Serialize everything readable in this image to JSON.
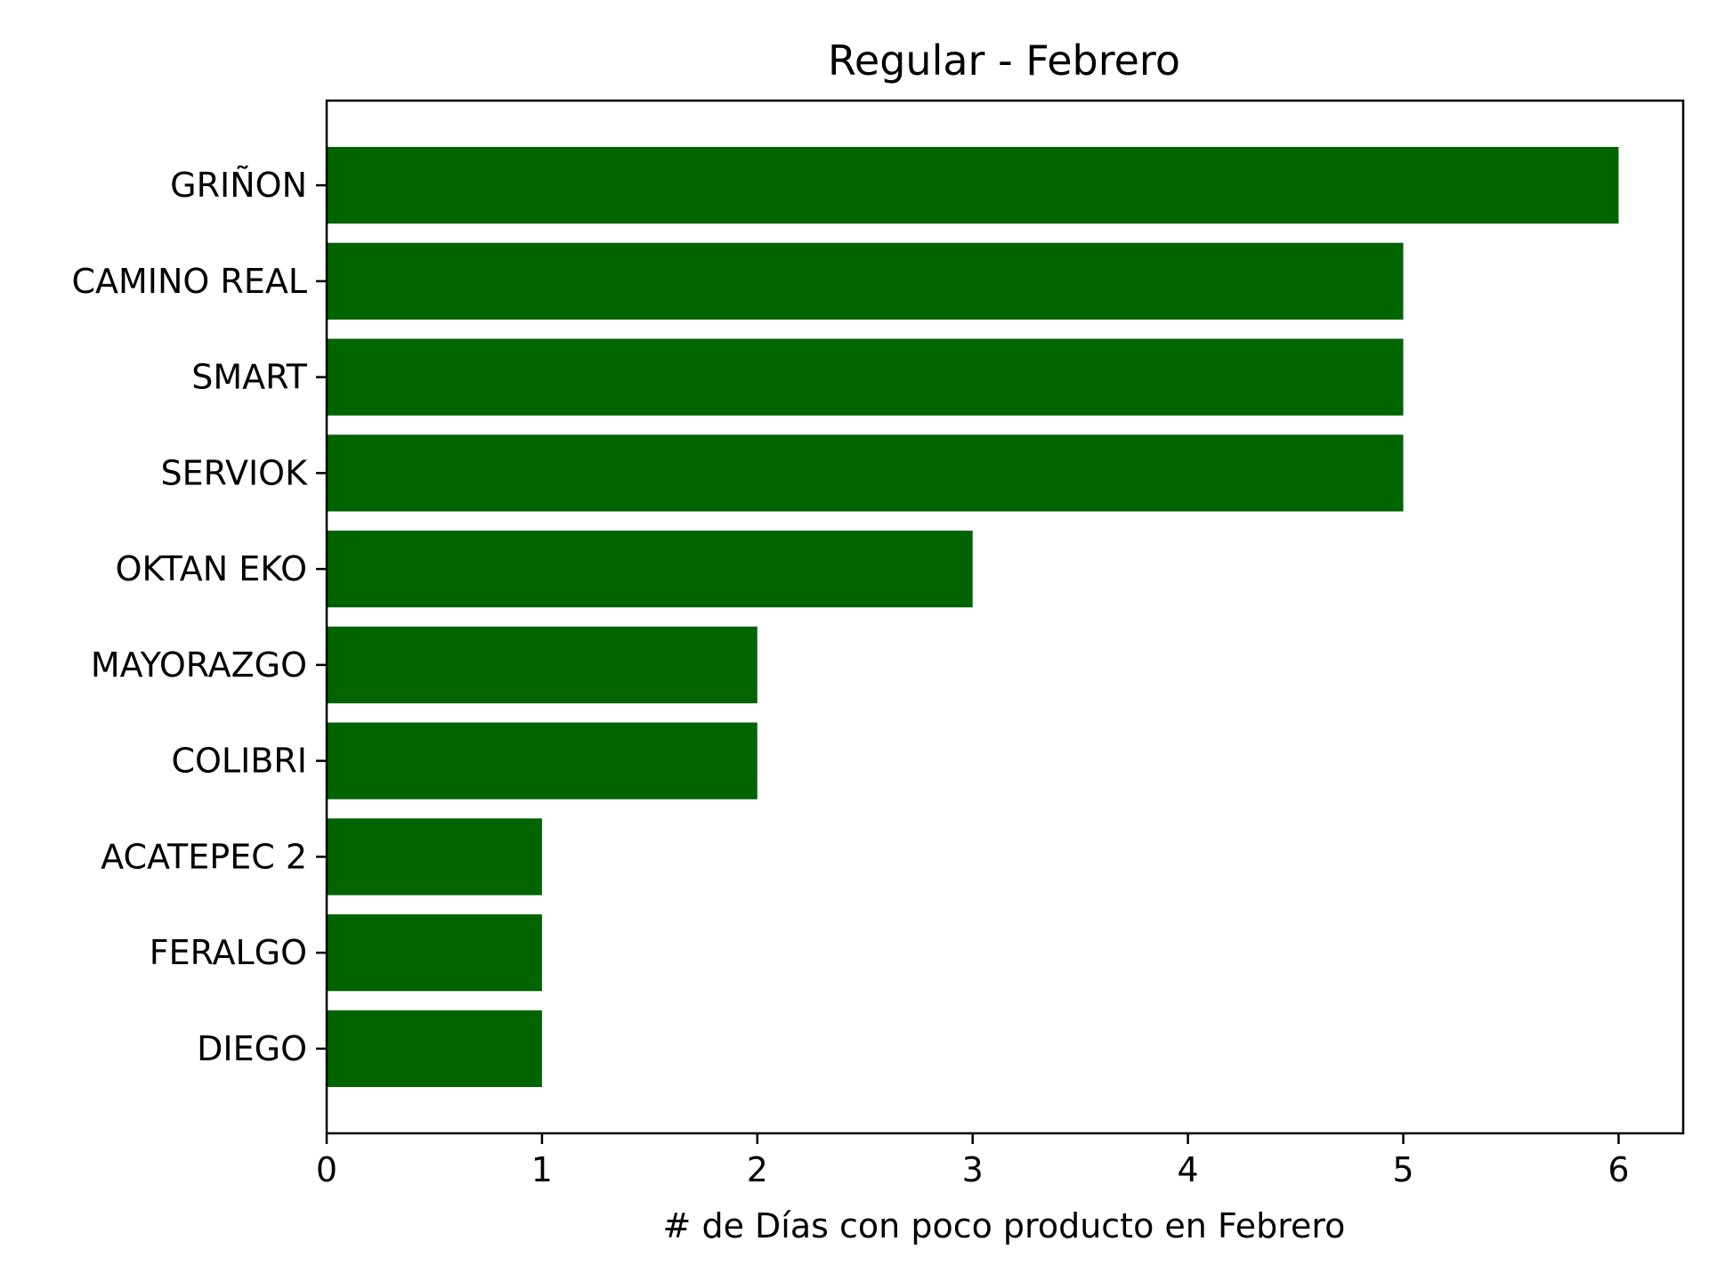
{
  "chart_data": {
    "type": "bar",
    "orientation": "horizontal",
    "title": "Regular - Febrero",
    "xlabel": "# de Días con poco producto en Febrero",
    "ylabel": "",
    "categories": [
      "GRIÑON",
      "CAMINO REAL",
      "SMART",
      "SERVIOK",
      "OKTAN EKO",
      "MAYORAZGO",
      "COLIBRI",
      "ACATEPEC 2",
      "FERALGO",
      "DIEGO"
    ],
    "values": [
      6,
      5,
      5,
      5,
      3,
      2,
      2,
      1,
      1,
      1
    ],
    "xlim": [
      0,
      6.3
    ],
    "xticks": [
      0,
      1,
      2,
      3,
      4,
      5,
      6
    ],
    "grid": false,
    "legend": "none",
    "colors": {
      "bar": "#006400",
      "axis": "#000000",
      "background": "#ffffff"
    }
  }
}
